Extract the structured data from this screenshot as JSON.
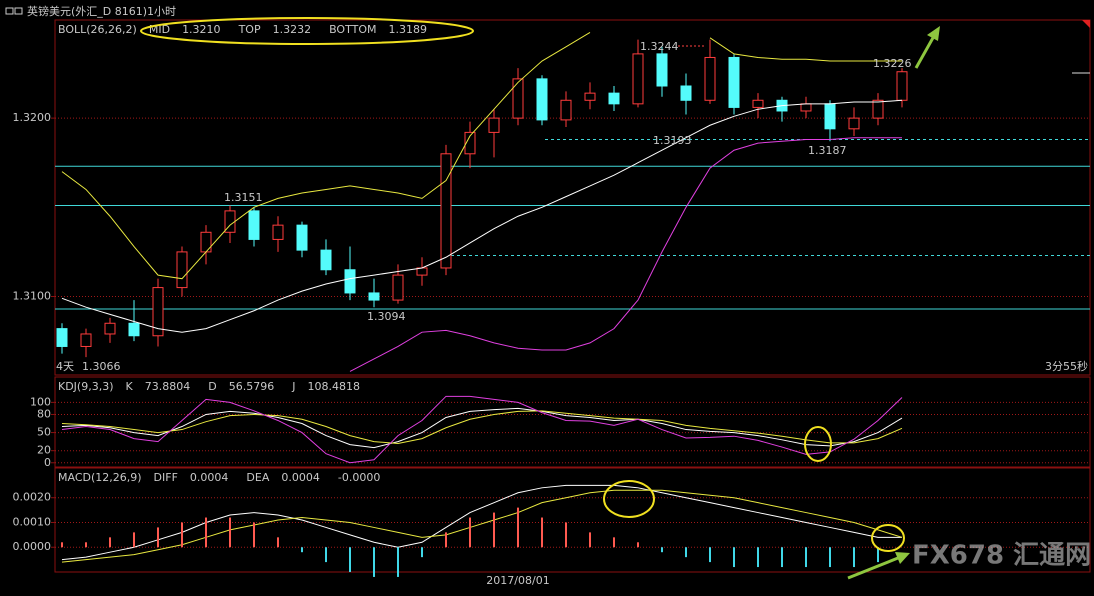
{
  "chart_data": [
    {
      "type": "candlestick",
      "title": "英镑美元(外汇_D 8161)1小时",
      "indicator": "BOLL(26,26,2)",
      "categories": [
        null,
        null,
        null,
        null,
        null,
        null,
        null,
        null,
        null,
        null,
        null,
        null,
        null,
        null,
        null,
        null,
        null,
        null,
        null,
        "2017/08/01",
        null,
        null,
        null,
        null,
        null,
        null,
        null,
        null,
        null,
        null,
        null,
        null,
        null,
        null,
        null,
        null
      ],
      "open": [
        1.3082,
        1.3072,
        1.3079,
        1.3085,
        1.3078,
        1.3105,
        1.3125,
        1.3136,
        1.3148,
        1.3132,
        1.314,
        1.3126,
        1.3115,
        1.3102,
        1.3098,
        1.3112,
        1.3116,
        1.318,
        1.3192,
        1.32,
        1.3222,
        1.3199,
        1.321,
        1.3214,
        1.3208,
        1.3236,
        1.3218,
        1.321,
        1.3234,
        1.3206,
        1.321,
        1.3204,
        1.3208,
        1.3194,
        1.32,
        1.321
      ],
      "high": [
        1.3085,
        1.3082,
        1.3088,
        1.3098,
        1.311,
        1.3128,
        1.314,
        1.3151,
        1.315,
        1.3145,
        1.3142,
        1.3132,
        1.3128,
        1.311,
        1.3118,
        1.3122,
        1.3185,
        1.3198,
        1.3205,
        1.3228,
        1.3224,
        1.3215,
        1.322,
        1.3218,
        1.3244,
        1.324,
        1.3225,
        1.3244,
        1.3236,
        1.3214,
        1.3212,
        1.3212,
        1.321,
        1.3206,
        1.3214,
        1.3228
      ],
      "low": [
        1.3068,
        1.3066,
        1.3074,
        1.3075,
        1.3072,
        1.31,
        1.3118,
        1.313,
        1.3128,
        1.3125,
        1.3122,
        1.3112,
        1.3098,
        1.3094,
        1.3096,
        1.3106,
        1.3112,
        1.3172,
        1.3178,
        1.3196,
        1.3196,
        1.3195,
        1.3205,
        1.3204,
        1.3206,
        1.3212,
        1.3202,
        1.3208,
        1.3202,
        1.32,
        1.3198,
        1.32,
        1.3187,
        1.319,
        1.3196,
        1.3206
      ],
      "close": [
        1.3072,
        1.3079,
        1.3085,
        1.3078,
        1.3105,
        1.3125,
        1.3136,
        1.3148,
        1.3132,
        1.314,
        1.3126,
        1.3115,
        1.3102,
        1.3098,
        1.3112,
        1.3116,
        1.318,
        1.3192,
        1.32,
        1.3222,
        1.3199,
        1.321,
        1.3214,
        1.3208,
        1.3236,
        1.3218,
        1.321,
        1.3234,
        1.3206,
        1.321,
        1.3204,
        1.3208,
        1.3194,
        1.32,
        1.321,
        1.3226
      ],
      "up_color": "#ff3c3c",
      "down_color": "#54fcfc",
      "series": [
        {
          "name": "MID",
          "readout": "1.3210",
          "color": "#ffffff",
          "values": [
            1.3099,
            1.3094,
            1.309,
            1.3086,
            1.3082,
            1.308,
            1.3082,
            1.3087,
            1.3092,
            1.3098,
            1.3103,
            1.3107,
            1.311,
            1.3112,
            1.3114,
            1.3116,
            1.3122,
            1.313,
            1.3138,
            1.3145,
            1.315,
            1.3156,
            1.3162,
            1.3168,
            1.3175,
            1.3182,
            1.3189,
            1.3196,
            1.3201,
            1.3205,
            1.3207,
            1.3208,
            1.3208,
            1.3209,
            1.3209,
            1.321
          ]
        },
        {
          "name": "TOP",
          "readout": "1.3232",
          "color": "#e8e840",
          "values": [
            1.317,
            1.316,
            1.3145,
            1.3128,
            1.3112,
            1.311,
            1.3125,
            1.314,
            1.315,
            1.3155,
            1.3158,
            1.316,
            1.3162,
            1.316,
            1.3158,
            1.3155,
            1.3165,
            1.319,
            1.3205,
            1.322,
            1.3232,
            1.324,
            1.3248,
            null,
            null,
            null,
            null,
            1.3245,
            1.3236,
            1.3234,
            1.3233,
            1.3233,
            1.3232,
            1.3232,
            1.3232,
            1.3232
          ]
        },
        {
          "name": "BOTTOM",
          "readout": "1.3189",
          "color": "#e040e0",
          "values": [
            null,
            null,
            null,
            null,
            null,
            null,
            null,
            null,
            null,
            null,
            null,
            null,
            1.3058,
            1.3065,
            1.3072,
            1.308,
            1.3081,
            1.3078,
            1.3074,
            1.3071,
            1.307,
            1.307,
            1.3074,
            1.3082,
            1.3098,
            1.3125,
            1.315,
            1.3172,
            1.3182,
            1.3186,
            1.3187,
            1.3188,
            1.3188,
            1.3189,
            1.3189,
            1.3189
          ]
        }
      ],
      "hlines": [
        1.3173,
        1.3151,
        1.3093
      ],
      "dashed_hlines": [
        1.3188,
        1.3123
      ],
      "hline_color": "#40d8d8",
      "annotations": [
        "1.3244",
        "1.3151",
        "1.3094",
        "1.3193",
        "1.3187",
        "1.3226"
      ],
      "corner_labels": [
        "4天",
        "1.3066",
        "3分55秒"
      ],
      "ylim": [
        1.3056,
        1.3255
      ],
      "yticks": [
        {
          "value": 1.32,
          "label": "1.3200"
        },
        {
          "value": 1.31,
          "label": "1.3100"
        }
      ],
      "grid": true
    },
    {
      "type": "line",
      "indicator": "KDJ(9,3,3)",
      "series": [
        {
          "name": "K",
          "readout": "73.8804",
          "color": "#ffffff",
          "values": [
            60,
            62,
            58,
            50,
            45,
            60,
            80,
            85,
            82,
            75,
            65,
            45,
            30,
            25,
            35,
            50,
            75,
            85,
            88,
            90,
            85,
            78,
            75,
            70,
            72,
            65,
            55,
            52,
            50,
            45,
            38,
            30,
            28,
            35,
            50,
            74
          ]
        },
        {
          "name": "D",
          "readout": "56.5796",
          "color": "#e8e840",
          "values": [
            65,
            63,
            60,
            55,
            50,
            55,
            68,
            78,
            80,
            78,
            72,
            60,
            45,
            35,
            32,
            40,
            58,
            72,
            80,
            85,
            86,
            82,
            78,
            74,
            72,
            70,
            62,
            57,
            53,
            49,
            44,
            38,
            33,
            33,
            40,
            57
          ]
        },
        {
          "name": "J",
          "readout": "108.4818",
          "color": "#e040e0",
          "values": [
            55,
            60,
            55,
            40,
            35,
            70,
            105,
            100,
            86,
            70,
            50,
            15,
            0,
            5,
            45,
            70,
            110,
            110,
            105,
            100,
            83,
            70,
            69,
            62,
            72,
            55,
            41,
            42,
            44,
            37,
            26,
            14,
            18,
            39,
            70,
            108
          ]
        }
      ],
      "ylim": [
        -7,
        142
      ],
      "yticks": [
        100,
        80,
        50,
        20,
        0
      ],
      "grid": true
    },
    {
      "type": "line",
      "indicator": "MACD(12,26,9)",
      "series": [
        {
          "name": "DIFF",
          "readout": "0.0004",
          "color": "#ffffff",
          "values": [
            -0.0005,
            -0.0004,
            -0.0002,
            0,
            0.0003,
            0.0006,
            0.001,
            0.0013,
            0.0014,
            0.0013,
            0.0011,
            0.0008,
            0.0005,
            0.0002,
            0,
            0.0002,
            0.0008,
            0.0014,
            0.0018,
            0.0022,
            0.0024,
            0.0025,
            0.0025,
            0.0025,
            0.0024,
            0.0022,
            0.002,
            0.0018,
            0.0016,
            0.0014,
            0.0012,
            0.001,
            0.0008,
            0.0006,
            0.0004,
            0.0004
          ]
        },
        {
          "name": "DEA",
          "readout": "0.0004",
          "color": "#e8e840",
          "values": [
            -0.0006,
            -0.0005,
            -0.0004,
            -0.0003,
            -0.0001,
            0.0001,
            0.0004,
            0.0007,
            0.0009,
            0.0011,
            0.0012,
            0.0011,
            0.001,
            0.0008,
            0.0006,
            0.0004,
            0.0005,
            0.0008,
            0.0011,
            0.0014,
            0.0018,
            0.002,
            0.0022,
            0.0023,
            0.0023,
            0.0023,
            0.0022,
            0.0021,
            0.002,
            0.0018,
            0.0016,
            0.0014,
            0.0012,
            0.001,
            0.0007,
            0.0004
          ]
        },
        {
          "type": "bar",
          "readout": "-0.0000",
          "color": "#ffffff",
          "up_color": "#ff5a50",
          "down_color": "#40d8e8",
          "values": [
            0.0002,
            0.0002,
            0.0004,
            0.0006,
            0.0008,
            0.001,
            0.0012,
            0.0012,
            0.001,
            0.0004,
            -0.0002,
            -0.0006,
            -0.001,
            -0.0012,
            -0.0012,
            -0.0004,
            0.0006,
            0.0012,
            0.0014,
            0.0016,
            0.0012,
            0.001,
            0.0006,
            0.0004,
            0.0002,
            -0.0002,
            -0.0004,
            -0.0006,
            -0.0008,
            -0.0008,
            -0.0008,
            -0.0008,
            -0.0008,
            -0.0008,
            -0.0006,
            0
          ]
        }
      ],
      "ylim": [
        -0.001,
        0.0032
      ],
      "yticks": [
        {
          "value": 0.002,
          "label": "0.0020"
        },
        {
          "value": 0.001,
          "label": "0.0010"
        },
        {
          "value": 0,
          "label": "0.0000"
        }
      ],
      "grid": true
    }
  ],
  "watermark": "FX678 汇通网"
}
